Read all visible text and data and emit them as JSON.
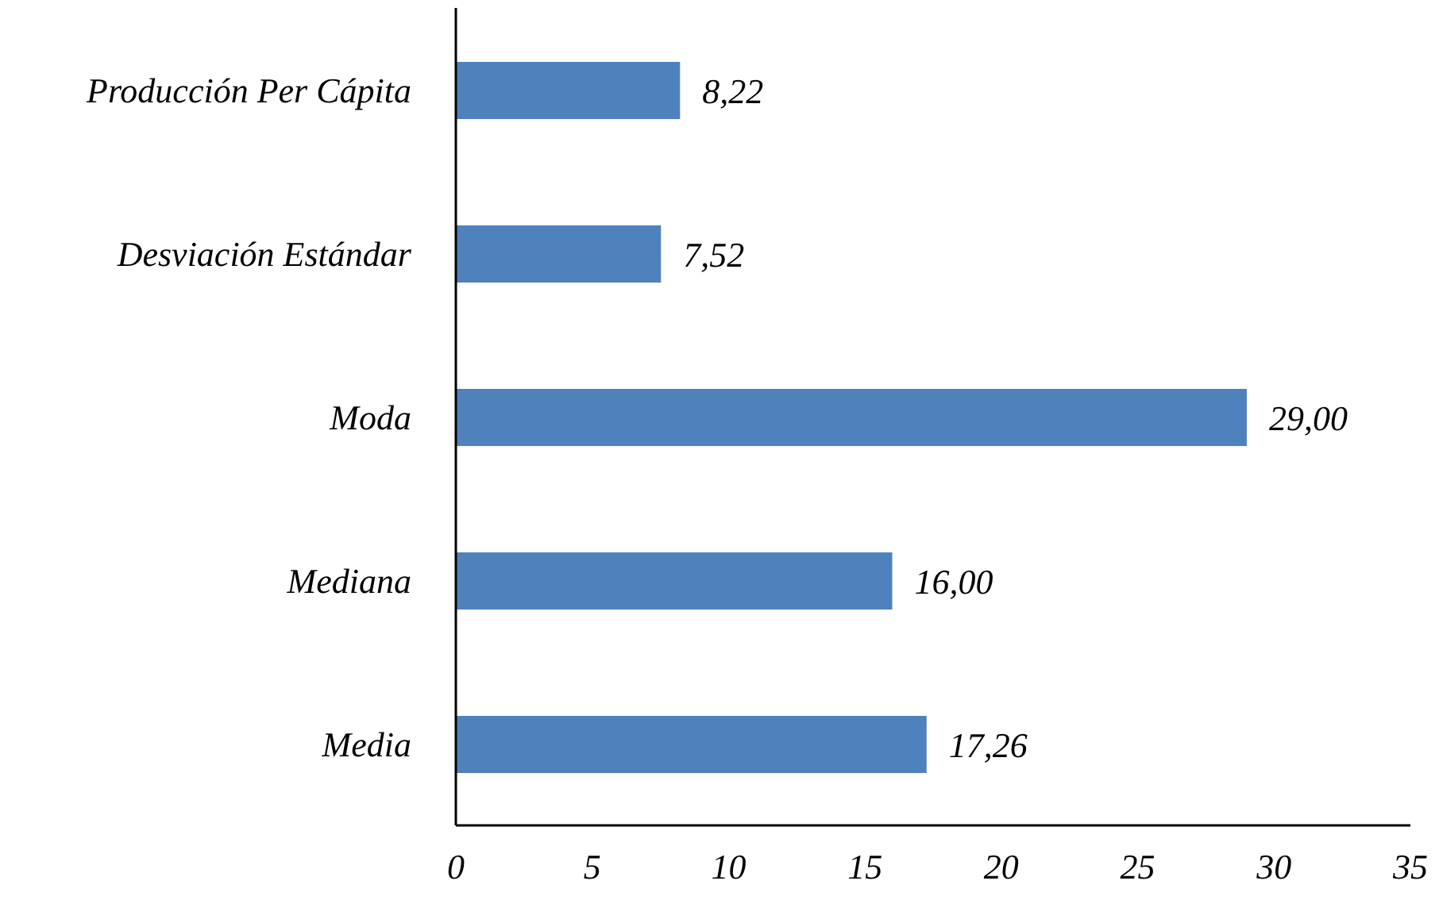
{
  "chart_data": {
    "type": "bar",
    "orientation": "horizontal",
    "categories": [
      "Producción Per Cápita",
      "Desviación Estándar",
      "Moda",
      "Mediana",
      "Media"
    ],
    "values": [
      8.22,
      7.52,
      29.0,
      16.0,
      17.26
    ],
    "value_labels": [
      "8,22",
      "7,52",
      "29,00",
      "16,00",
      "17,26"
    ],
    "color": "#4f81bd",
    "xlim": [
      0,
      35
    ],
    "xticks": [
      0,
      5,
      10,
      15,
      20,
      25,
      30,
      35
    ],
    "grid": false,
    "legend": false
  }
}
